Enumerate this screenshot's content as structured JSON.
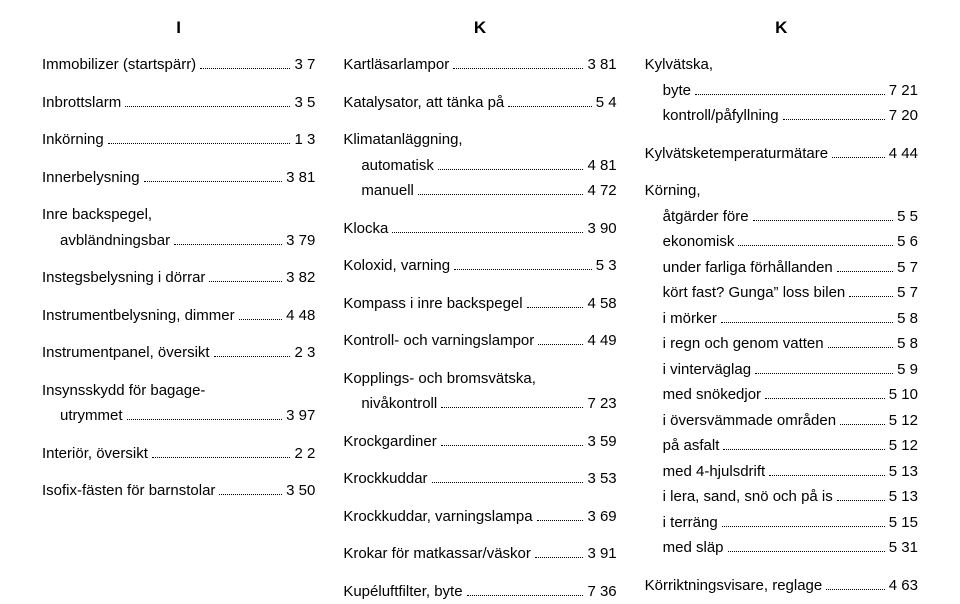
{
  "columns": [
    {
      "header": "I",
      "entries": [
        {
          "type": "single",
          "label": "Immobilizer (startspärr)",
          "ref": "3 7"
        },
        {
          "type": "single",
          "label": "Inbrottslarm",
          "ref": "3 5"
        },
        {
          "type": "single",
          "label": "Inkörning",
          "ref": "1 3"
        },
        {
          "type": "single",
          "label": "Innerbelysning",
          "ref": "3 81"
        },
        {
          "type": "group",
          "label": "Inre backspegel,",
          "subs": [
            {
              "label": "avbländningsbar",
              "ref": "3 79"
            }
          ]
        },
        {
          "type": "single",
          "label": "Instegsbelysning i dörrar",
          "ref": "3 82"
        },
        {
          "type": "single",
          "label": "Instrumentbelysning, dimmer",
          "ref": "4 48"
        },
        {
          "type": "single",
          "label": "Instrumentpanel, översikt",
          "ref": "2 3"
        },
        {
          "type": "group",
          "label": "Insynsskydd för bagage-",
          "subs": [
            {
              "label": "utrymmet",
              "ref": "3 97"
            }
          ]
        },
        {
          "type": "single",
          "label": "Interiör, översikt",
          "ref": "2 2"
        },
        {
          "type": "single",
          "label": "Isofix-fästen för barnstolar",
          "ref": "3 50"
        }
      ]
    },
    {
      "header": "K",
      "entries": [
        {
          "type": "single",
          "label": "Kartläsarlampor",
          "ref": "3 81"
        },
        {
          "type": "single",
          "label": "Katalysator, att tänka på",
          "ref": "5 4"
        },
        {
          "type": "group",
          "label": "Klimatanläggning,",
          "subs": [
            {
              "label": "automatisk",
              "ref": "4 81"
            },
            {
              "label": "manuell",
              "ref": "4 72"
            }
          ]
        },
        {
          "type": "single",
          "label": "Klocka",
          "ref": "3 90"
        },
        {
          "type": "single",
          "label": "Koloxid, varning",
          "ref": "5 3"
        },
        {
          "type": "single",
          "label": "Kompass i inre backspegel",
          "ref": "4 58"
        },
        {
          "type": "single",
          "label": "Kontroll- och varningslampor",
          "ref": "4 49"
        },
        {
          "type": "group",
          "label": "Kopplings- och bromsvätska,",
          "subs": [
            {
              "label": "nivåkontroll",
              "ref": "7 23"
            }
          ]
        },
        {
          "type": "single",
          "label": "Krockgardiner",
          "ref": "3 59"
        },
        {
          "type": "single",
          "label": "Krockkuddar",
          "ref": "3 53"
        },
        {
          "type": "single",
          "label": "Krockkuddar, varningslampa",
          "ref": "3 69"
        },
        {
          "type": "single",
          "label": "Krokar för matkassar/väskor",
          "ref": "3 91"
        },
        {
          "type": "single",
          "label": "Kupéluftfilter, byte",
          "ref": "7 36"
        }
      ]
    },
    {
      "header": "K",
      "entries": [
        {
          "type": "group",
          "label": "Kylvätska,",
          "subs": [
            {
              "label": "byte",
              "ref": "7 21"
            },
            {
              "label": "kontroll/påfyllning",
              "ref": "7 20"
            }
          ]
        },
        {
          "type": "single",
          "label": "Kylvätsketemperaturmätare",
          "ref": "4 44"
        },
        {
          "type": "group",
          "label": "Körning,",
          "subs": [
            {
              "label": "åtgärder före",
              "ref": "5 5"
            },
            {
              "label": "ekonomisk",
              "ref": "5 6"
            },
            {
              "label": "under farliga förhållanden",
              "ref": "5 7"
            },
            {
              "label": "kört fast? Gunga” loss bilen",
              "ref": "5 7"
            },
            {
              "label": "i mörker",
              "ref": "5 8"
            },
            {
              "label": "i regn och genom vatten",
              "ref": "5 8"
            },
            {
              "label": "i vinterväglag",
              "ref": "5 9"
            },
            {
              "label": "med snökedjor",
              "ref": "5 10"
            },
            {
              "label": "i översvämmade områden",
              "ref": "5 12"
            },
            {
              "label": "på asfalt",
              "ref": "5 12"
            },
            {
              "label": "med 4-hjulsdrift",
              "ref": "5 13"
            },
            {
              "label": "i lera, sand, snö och på is",
              "ref": "5 13"
            },
            {
              "label": "i terräng",
              "ref": "5 15"
            },
            {
              "label": "med släp",
              "ref": "5 31"
            }
          ]
        },
        {
          "type": "single",
          "label": "Körriktningsvisare, reglage",
          "ref": "4 63"
        }
      ]
    }
  ]
}
